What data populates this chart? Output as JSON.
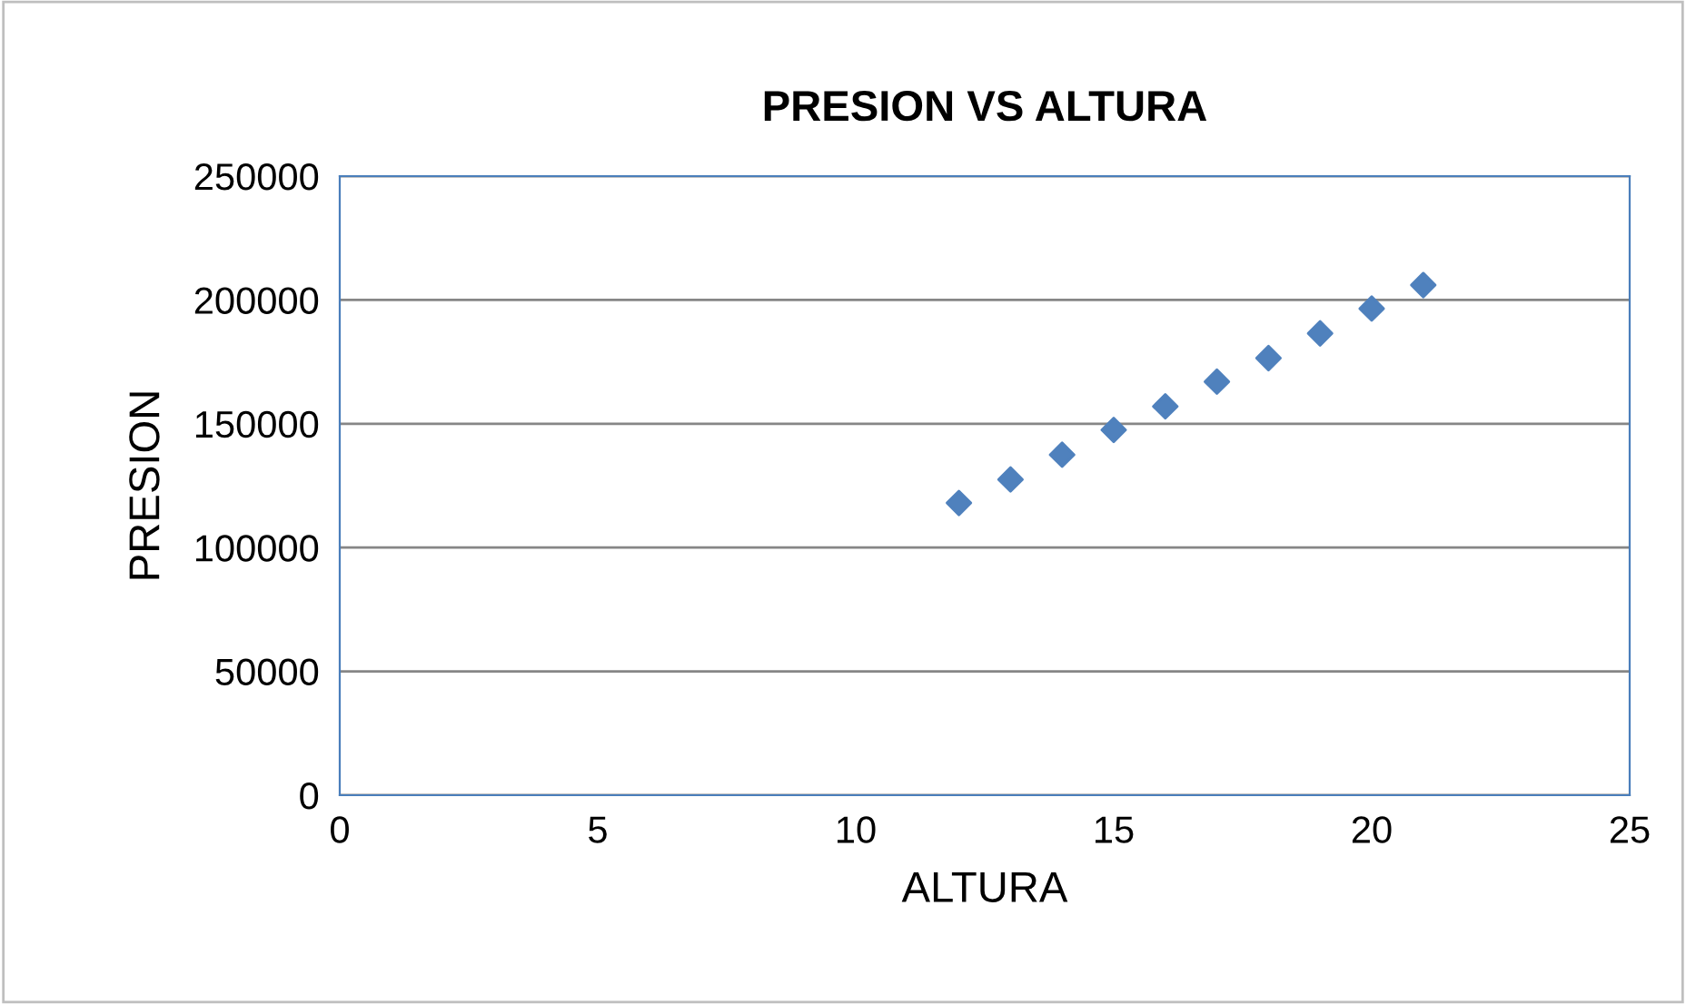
{
  "chart_data": {
    "type": "scatter",
    "title": "PRESION VS ALTURA",
    "xlabel": "ALTURA",
    "ylabel": "PRESION",
    "x": [
      12,
      13,
      14,
      15,
      16,
      17,
      18,
      19,
      20,
      21
    ],
    "series": [
      {
        "color": "#4f81bd",
        "values": [
          118000,
          127500,
          137500,
          147500,
          157000,
          167000,
          176500,
          186500,
          196500,
          206000
        ]
      }
    ],
    "xlim": [
      0,
      25
    ],
    "xticks": [
      0,
      5,
      10,
      15,
      20,
      25
    ],
    "ylim": [
      0,
      250000
    ],
    "yticks": [
      0,
      50000,
      100000,
      150000,
      200000,
      250000
    ],
    "grid": "y",
    "marker": "diamond",
    "legend": false
  }
}
